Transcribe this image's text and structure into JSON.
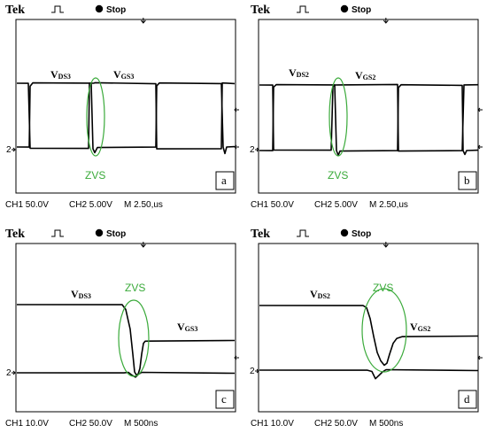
{
  "colors": {
    "trace": "#000000",
    "zvs": "#3aaa3a",
    "frame": "#000000"
  },
  "panels": [
    {
      "letter": "a",
      "brand": "Tek",
      "status": "Stop",
      "ch1": "CH1  50.0V",
      "ch2": "CH2  5.00V",
      "timebase": "M 2.50,us",
      "vds": {
        "main": "V",
        "sub": "DS3"
      },
      "vgs": {
        "main": "V",
        "sub": "GS3"
      },
      "zvs": "ZVS"
    },
    {
      "letter": "b",
      "brand": "Tek",
      "status": "Stop",
      "ch1": "CH1  50.0V",
      "ch2": "CH2  5.00V",
      "timebase": "M 2.50,us",
      "vds": {
        "main": "V",
        "sub": "DS2"
      },
      "vgs": {
        "main": "V",
        "sub": "GS2"
      },
      "zvs": "ZVS"
    },
    {
      "letter": "c",
      "brand": "Tek",
      "status": "Stop",
      "ch1": "CH1  10.0V",
      "ch2": "CH2  50.0V",
      "timebase": "M 500ns",
      "vds": {
        "main": "V",
        "sub": "DS3"
      },
      "vgs": {
        "main": "V",
        "sub": "GS3"
      },
      "zvs": "ZVS"
    },
    {
      "letter": "d",
      "brand": "Tek",
      "status": "Stop",
      "ch1": "CH1  10.0V",
      "ch2": "CH2  50.0V",
      "timebase": "M 500ns",
      "vds": {
        "main": "V",
        "sub": "DS2"
      },
      "vgs": {
        "main": "V",
        "sub": "GS2"
      },
      "zvs": "ZVS"
    }
  ],
  "chart_data": {
    "type": "line",
    "title": "",
    "note": "Oscilloscope captures of drain-source and gate-source voltages showing zero-voltage switching"
  }
}
